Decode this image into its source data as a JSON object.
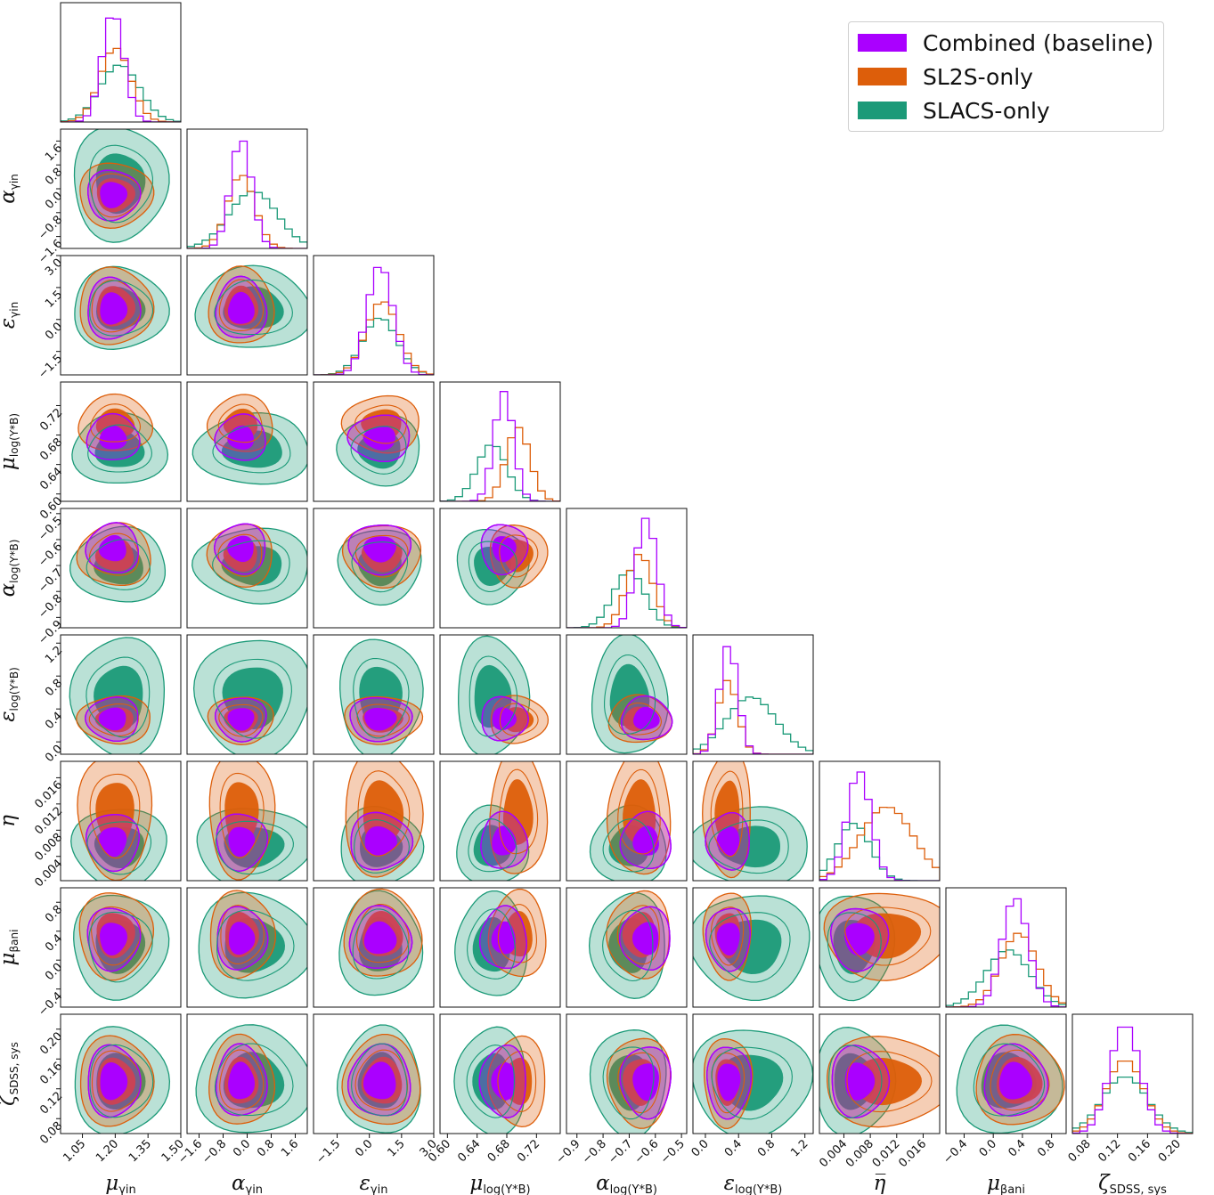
{
  "chart_data": {
    "type": "corner",
    "series": [
      {
        "name": "Combined (baseline)",
        "color": "#aa00ff"
      },
      {
        "name": "SL2S-only",
        "color": "#dd5e0a"
      },
      {
        "name": "SLACS-only",
        "color": "#1b9a78"
      }
    ],
    "legend_position": "top-right",
    "parameters": [
      {
        "key": "mu_gamma_in",
        "ylabel": "",
        "xlabel": "μ",
        "sub": "γin",
        "range": [
          0.95,
          1.5
        ],
        "ticks": [
          "1.05",
          "1.20",
          "1.35",
          "1.50"
        ],
        "tickvals": [
          1.05,
          1.2,
          1.35,
          1.5
        ]
      },
      {
        "key": "alpha_gamma_in",
        "ylabel": "α",
        "xlabel": "α",
        "sub": "γin",
        "range": [
          -2.0,
          2.0
        ],
        "ticks": [
          "−1.6",
          "−0.8",
          "0.0",
          "0.8",
          "1.6"
        ],
        "tickvals": [
          -1.6,
          -0.8,
          0.0,
          0.8,
          1.6
        ]
      },
      {
        "key": "eps_gamma_in",
        "ylabel": "ε",
        "xlabel": "ε",
        "sub": "γin",
        "range": [
          -2.6,
          3.0
        ],
        "ticks": [
          "−1.5",
          "0.0",
          "1.5",
          "3.0"
        ],
        "tickvals": [
          -1.5,
          0.0,
          1.5,
          3.0
        ]
      },
      {
        "key": "mu_logY",
        "ylabel": "μ",
        "xlabel": "μ",
        "sub": "log(Υ*B)",
        "range": [
          0.59,
          0.752
        ],
        "ticks": [
          "0.60",
          "0.64",
          "0.68",
          "0.72"
        ],
        "tickvals": [
          0.6,
          0.64,
          0.68,
          0.72
        ]
      },
      {
        "key": "alpha_logY",
        "ylabel": "α",
        "xlabel": "α",
        "sub": "log(Υ*B)",
        "range": [
          -0.94,
          -0.48
        ],
        "ticks": [
          "−0.9",
          "−0.8",
          "−0.7",
          "−0.6",
          "−0.5"
        ],
        "tickvals": [
          -0.9,
          -0.8,
          -0.7,
          -0.6,
          -0.5
        ]
      },
      {
        "key": "eps_logY",
        "ylabel": "ε",
        "xlabel": "ε",
        "sub": "log(Υ*B)",
        "range": [
          -0.15,
          1.3
        ],
        "ticks": [
          "0.0",
          "0.4",
          "0.8",
          "1.2"
        ],
        "tickvals": [
          0.0,
          0.4,
          0.8,
          1.2
        ]
      },
      {
        "key": "eta_bar",
        "ylabel": "η̅",
        "xlabel": "η̅",
        "sub": "",
        "range": [
          0.0003,
          0.0185
        ],
        "ticks": [
          "0.004",
          "0.008",
          "0.012",
          "0.016"
        ],
        "tickvals": [
          0.004,
          0.008,
          0.012,
          0.016
        ]
      },
      {
        "key": "mu_beta_ani",
        "ylabel": "μ",
        "xlabel": "μ",
        "sub": "βani",
        "range": [
          -0.65,
          1.0
        ],
        "ticks": [
          "−0.4",
          "0.0",
          "0.4",
          "0.8"
        ],
        "tickvals": [
          -0.4,
          0.0,
          0.4,
          0.8
        ]
      },
      {
        "key": "zeta_sdss_sys",
        "ylabel": "ζ",
        "xlabel": "ζ",
        "sub": "SDSS, sys",
        "range": [
          0.06,
          0.22
        ],
        "ticks": [
          "0.08",
          "0.12",
          "0.16",
          "0.20"
        ],
        "tickvals": [
          0.08,
          0.12,
          0.16,
          0.2
        ]
      }
    ],
    "row_ticks": [
      null,
      {
        "ticks": [
          "−1.6",
          "−0.8",
          "0.0",
          "0.8",
          "1.6"
        ],
        "tickvals": [
          -1.6,
          -0.8,
          0.0,
          0.8,
          1.6
        ]
      },
      {
        "ticks": [
          "−1.5",
          "0.0",
          "1.5",
          "3.0"
        ],
        "tickvals": [
          -1.5,
          0.0,
          1.5,
          3.0
        ]
      },
      {
        "ticks": [
          "0.60",
          "0.64",
          "0.68",
          "0.72"
        ],
        "tickvals": [
          0.6,
          0.64,
          0.68,
          0.72
        ]
      },
      {
        "ticks": [
          "−0.9",
          "−0.8",
          "−0.7",
          "−0.6",
          "−0.5"
        ],
        "tickvals": [
          -0.9,
          -0.8,
          -0.7,
          -0.6,
          -0.5
        ]
      },
      {
        "ticks": [
          "0.0",
          "0.4",
          "0.8",
          "1.2"
        ],
        "tickvals": [
          0.0,
          0.4,
          0.8,
          1.2
        ]
      },
      {
        "ticks": [
          "0.004",
          "0.008",
          "0.012",
          "0.016"
        ],
        "tickvals": [
          0.004,
          0.008,
          0.012,
          0.016
        ]
      },
      {
        "ticks": [
          "−0.4",
          "0.0",
          "0.4",
          "0.8"
        ],
        "tickvals": [
          -0.4,
          0.0,
          0.4,
          0.8
        ]
      },
      {
        "ticks": [
          "0.08",
          "0.12",
          "0.16",
          "0.20"
        ],
        "tickvals": [
          0.08,
          0.12,
          0.16,
          0.2
        ]
      }
    ],
    "posterior_means": {
      "Combined (baseline)": [
        1.19,
        -0.2,
        0.5,
        0.676,
        -0.635,
        0.28,
        0.0063,
        0.3,
        0.13
      ],
      "SL2S-only": [
        1.2,
        -0.2,
        0.6,
        0.695,
        -0.66,
        0.27,
        0.0105,
        0.35,
        0.13
      ],
      "SLACS-only": [
        1.22,
        0.2,
        0.5,
        0.66,
        -0.7,
        0.55,
        0.0055,
        0.2,
        0.13
      ]
    },
    "posterior_sigmas": {
      "Combined (baseline)": [
        0.05,
        0.35,
        0.6,
        0.013,
        0.04,
        0.11,
        0.0018,
        0.18,
        0.02
      ],
      "SL2S-only": [
        0.07,
        0.45,
        0.75,
        0.016,
        0.05,
        0.12,
        0.004,
        0.25,
        0.025
      ],
      "SLACS-only": [
        0.09,
        0.8,
        0.8,
        0.02,
        0.06,
        0.3,
        0.0025,
        0.3,
        0.03
      ]
    }
  },
  "legend": {
    "items": [
      {
        "label": "Combined (baseline)",
        "color": "#aa00ff"
      },
      {
        "label": "SL2S-only",
        "color": "#dd5e0a"
      },
      {
        "label": "SLACS-only",
        "color": "#1b9a78"
      }
    ]
  }
}
